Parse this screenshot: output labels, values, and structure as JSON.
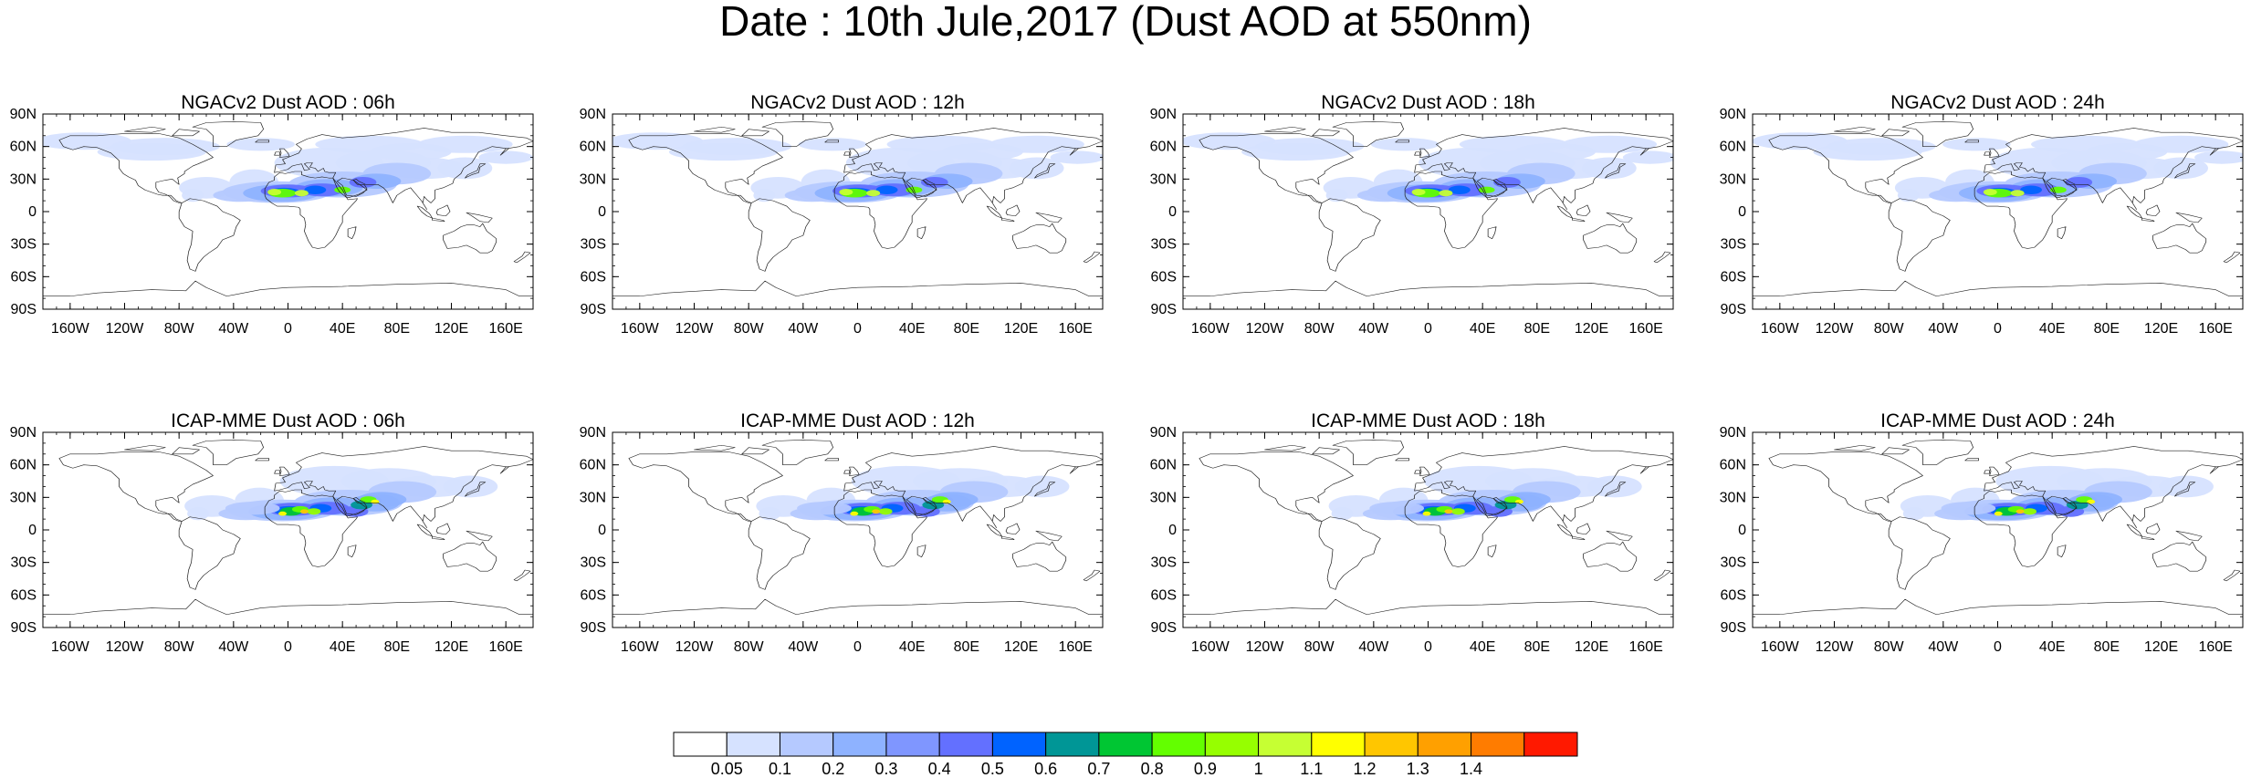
{
  "title": "Date : 10th Jule,2017 (Dust AOD at 550nm)",
  "panels": [
    {
      "title": "NGACv2 Dust AOD : 06h",
      "model": "NGACv2",
      "hour": "06h"
    },
    {
      "title": "NGACv2 Dust AOD : 12h",
      "model": "NGACv2",
      "hour": "12h"
    },
    {
      "title": "NGACv2 Dust AOD : 18h",
      "model": "NGACv2",
      "hour": "18h"
    },
    {
      "title": "NGACv2 Dust AOD : 24h",
      "model": "NGACv2",
      "hour": "24h"
    },
    {
      "title": "ICAP-MME Dust AOD : 06h",
      "model": "ICAP-MME",
      "hour": "06h"
    },
    {
      "title": "ICAP-MME Dust AOD : 12h",
      "model": "ICAP-MME",
      "hour": "12h"
    },
    {
      "title": "ICAP-MME Dust AOD : 18h",
      "model": "ICAP-MME",
      "hour": "18h"
    },
    {
      "title": "ICAP-MME Dust AOD : 24h",
      "model": "ICAP-MME",
      "hour": "24h"
    }
  ],
  "lat_ticks": [
    "90N",
    "60N",
    "30N",
    "0",
    "30S",
    "60S",
    "90S"
  ],
  "lon_ticks": [
    "160W",
    "120W",
    "80W",
    "40W",
    "0",
    "40E",
    "80E",
    "120E",
    "160E"
  ],
  "colorbar": {
    "levels": [
      "0.05",
      "0.1",
      "0.2",
      "0.3",
      "0.4",
      "0.5",
      "0.6",
      "0.7",
      "0.8",
      "0.9",
      "1",
      "1.1",
      "1.2",
      "1.3",
      "1.4"
    ],
    "colors": [
      "#ffffff",
      "#d6e2ff",
      "#b5c9ff",
      "#8eb2ff",
      "#7f96ff",
      "#6370ff",
      "#0063ff",
      "#009696",
      "#00c633",
      "#63ff00",
      "#96ff00",
      "#c6ff33",
      "#ffff00",
      "#ffc600",
      "#ffa000",
      "#ff7c00",
      "#ff1900"
    ]
  }
}
